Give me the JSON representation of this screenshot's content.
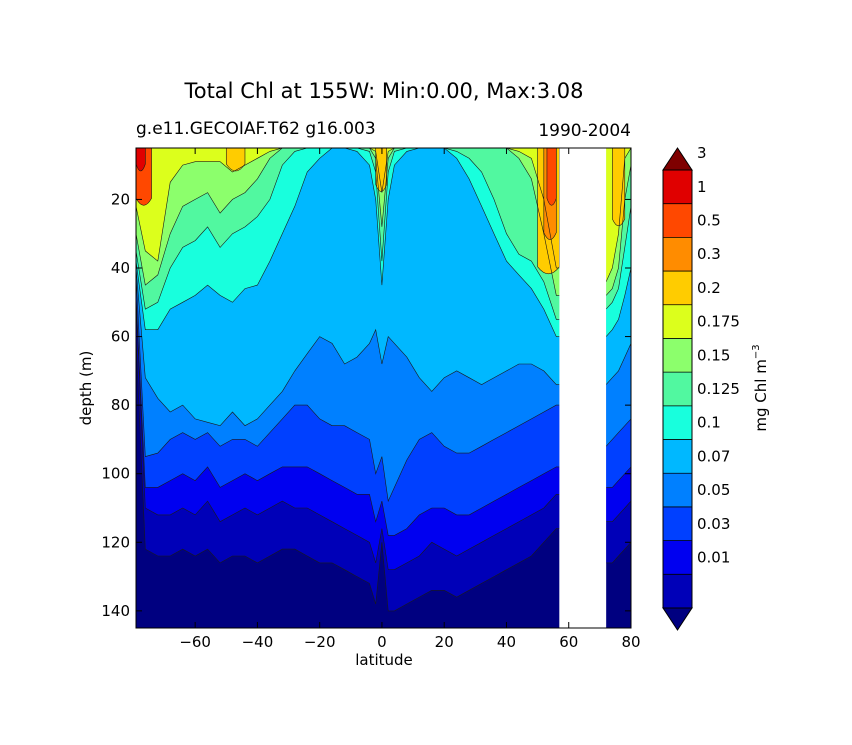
{
  "chart_data": {
    "type": "heatmap",
    "subtype": "filled-contour",
    "title": "Total Chl at 155W: Min:0.00, Max:3.08",
    "subtitle_left": "g.e11.GECOIAF.T62 g16.003",
    "subtitle_right": "1990-2004",
    "xlabel": "latitude",
    "ylabel": "depth (m)",
    "x_ticks": [
      -60,
      -40,
      -20,
      0,
      20,
      40,
      60,
      80
    ],
    "x_tick_labels": [
      "−60",
      "−40",
      "−20",
      "0",
      "20",
      "40",
      "60",
      "80"
    ],
    "y_ticks": [
      20,
      40,
      60,
      80,
      100,
      120,
      140
    ],
    "y_tick_labels": [
      "20",
      "40",
      "60",
      "80",
      "100",
      "120",
      "140"
    ],
    "xlim": [
      -79,
      80
    ],
    "ylim": [
      145,
      5
    ],
    "missing_band": [
      57,
      72
    ],
    "colorbar": {
      "label": "mg Chl m",
      "label_exp": "−3",
      "levels": [
        0.01,
        0.03,
        0.05,
        0.07,
        0.1,
        0.125,
        0.15,
        0.175,
        0.2,
        0.3,
        0.5,
        1,
        3
      ],
      "tick_labels": [
        "0.01",
        "0.03",
        "0.05",
        "0.07",
        "0.1",
        "0.125",
        "0.15",
        "0.175",
        "0.2",
        "0.3",
        "0.5",
        "1",
        "3"
      ],
      "colors": [
        "#000080",
        "#0000b8",
        "#0000f0",
        "#0040ff",
        "#0080ff",
        "#00b8ff",
        "#18ffdd",
        "#51f8a0",
        "#8cff6c",
        "#dcff1c",
        "#ffcc00",
        "#ff8c00",
        "#ff4800",
        "#e00000",
        "#7f0000"
      ],
      "extend": "both"
    },
    "lat_samples": [
      -79,
      -76,
      -72,
      -68,
      -64,
      -60,
      -56,
      -52,
      -48,
      -44,
      -40,
      -36,
      -32,
      -28,
      -24,
      -20,
      -16,
      -12,
      -8,
      -4,
      -2,
      0,
      2,
      4,
      8,
      12,
      16,
      20,
      24,
      28,
      32,
      36,
      40,
      44,
      48,
      52,
      56,
      57
    ],
    "contour_depths": {
      "level_0.2": [
        22,
        35,
        38,
        15,
        10,
        9,
        9,
        9,
        12,
        10,
        8,
        6,
        5,
        5,
        5,
        5,
        5,
        5,
        5,
        5,
        6,
        18,
        6,
        5,
        5,
        5,
        5,
        5,
        5,
        5,
        5,
        5,
        5,
        6,
        8,
        20,
        40,
        40
      ],
      "level_0.175": [
        30,
        45,
        42,
        30,
        22,
        20,
        18,
        24,
        20,
        18,
        14,
        8,
        5,
        5,
        5,
        5,
        5,
        5,
        5,
        5,
        8,
        28,
        8,
        5,
        5,
        5,
        5,
        5,
        5,
        5,
        5,
        5,
        5,
        8,
        14,
        30,
        48,
        48
      ],
      "level_0.15": [
        35,
        52,
        50,
        40,
        34,
        32,
        28,
        34,
        30,
        28,
        25,
        20,
        10,
        6,
        5,
        5,
        5,
        5,
        5,
        6,
        12,
        38,
        12,
        6,
        5,
        5,
        5,
        5,
        6,
        8,
        12,
        20,
        30,
        36,
        38,
        44,
        55,
        55
      ],
      "level_0.125": [
        38,
        58,
        58,
        52,
        50,
        48,
        45,
        48,
        50,
        46,
        45,
        38,
        30,
        22,
        12,
        8,
        5,
        5,
        6,
        10,
        20,
        45,
        20,
        10,
        6,
        5,
        5,
        5,
        8,
        14,
        22,
        30,
        38,
        42,
        46,
        52,
        60,
        60
      ],
      "level_0.1": [
        40,
        72,
        78,
        82,
        80,
        84,
        85,
        86,
        82,
        86,
        84,
        80,
        76,
        70,
        65,
        60,
        62,
        68,
        66,
        62,
        58,
        68,
        60,
        62,
        66,
        72,
        76,
        72,
        70,
        72,
        74,
        72,
        70,
        68,
        68,
        70,
        74,
        74
      ],
      "level_0.07": [
        42,
        95,
        94,
        90,
        88,
        90,
        88,
        92,
        90,
        90,
        92,
        88,
        84,
        80,
        80,
        84,
        86,
        86,
        88,
        90,
        100,
        95,
        108,
        104,
        96,
        90,
        88,
        92,
        94,
        94,
        92,
        90,
        88,
        86,
        84,
        82,
        80,
        80
      ],
      "level_0.05": [
        48,
        104,
        104,
        102,
        100,
        102,
        98,
        104,
        102,
        100,
        102,
        100,
        98,
        98,
        98,
        100,
        102,
        104,
        106,
        106,
        114,
        108,
        118,
        118,
        116,
        112,
        110,
        110,
        112,
        112,
        110,
        108,
        106,
        104,
        102,
        100,
        98,
        98
      ],
      "level_0.03": [
        50,
        110,
        112,
        112,
        110,
        112,
        108,
        114,
        112,
        110,
        112,
        110,
        108,
        110,
        110,
        112,
        114,
        116,
        118,
        120,
        126,
        116,
        128,
        128,
        126,
        124,
        120,
        122,
        124,
        122,
        120,
        118,
        116,
        114,
        112,
        110,
        106,
        106
      ],
      "level_0.01": [
        60,
        122,
        124,
        124,
        122,
        124,
        122,
        126,
        124,
        124,
        126,
        124,
        122,
        122,
        124,
        126,
        126,
        128,
        130,
        132,
        138,
        120,
        140,
        140,
        138,
        136,
        134,
        134,
        136,
        134,
        132,
        130,
        128,
        126,
        124,
        120,
        116,
        116
      ]
    },
    "north_levels_lat": [
      72,
      74,
      76,
      78,
      80
    ],
    "north_contour_depths": {
      "level_0.2": [
        44,
        40,
        30,
        8,
        5
      ],
      "level_0.175": [
        48,
        46,
        40,
        20,
        10
      ],
      "level_0.15": [
        52,
        50,
        46,
        34,
        22
      ],
      "level_0.125": [
        60,
        58,
        55,
        48,
        40
      ],
      "level_0.1": [
        74,
        72,
        70,
        66,
        62
      ],
      "level_0.07": [
        92,
        90,
        88,
        86,
        84
      ],
      "level_0.05": [
        104,
        104,
        102,
        100,
        98
      ],
      "level_0.03": [
        114,
        114,
        112,
        110,
        108
      ],
      "level_0.01": [
        126,
        126,
        124,
        122,
        120
      ]
    }
  }
}
